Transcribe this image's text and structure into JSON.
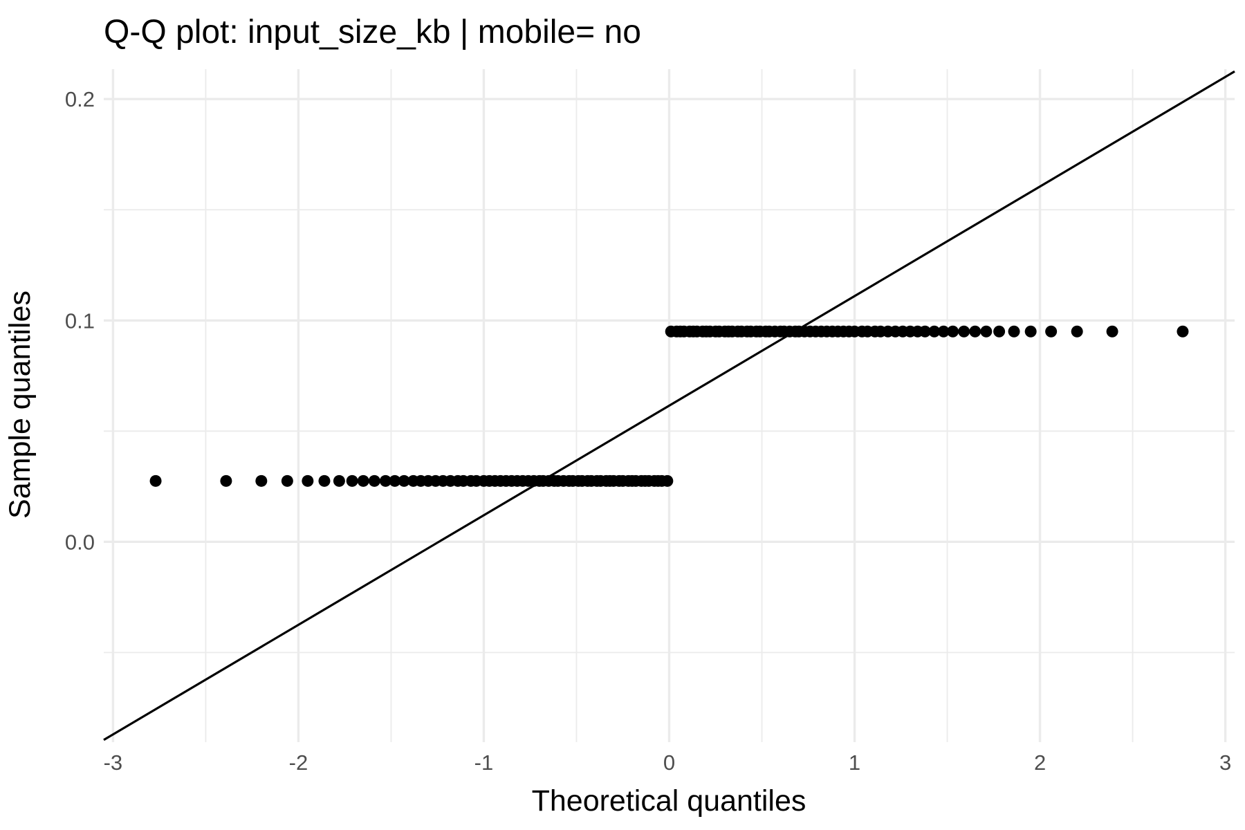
{
  "chart_data": {
    "type": "scatter",
    "title": "Q-Q plot: input_size_kb | mobile= no",
    "xlabel": "Theoretical quantiles",
    "ylabel": "Sample quantiles",
    "xlim": [
      -3.05,
      3.05
    ],
    "ylim": [
      -0.0905,
      0.2135
    ],
    "x_ticks": [
      -3,
      -2,
      -1,
      0,
      1,
      2,
      3
    ],
    "x_tick_labels": [
      "-3",
      "-2",
      "-1",
      "0",
      "1",
      "2",
      "3"
    ],
    "y_ticks": [
      0.0,
      0.1,
      0.2
    ],
    "y_tick_labels": [
      "0.0",
      "0.1",
      "0.2"
    ],
    "grid": true,
    "legend": "none",
    "point_color": "#000000",
    "line_color": "#000000",
    "grid_color": "#ebebeb",
    "reference_line": {
      "intercept": 0.0615,
      "slope": 0.0495
    },
    "series": [
      {
        "x_lower": [
          -2.77,
          -2.39,
          -2.2,
          -2.06,
          -1.95,
          -1.86,
          -1.78,
          -1.71,
          -1.65,
          -1.59,
          -1.53,
          -1.48,
          -1.43,
          -1.38,
          -1.34,
          -1.3,
          -1.26,
          -1.22,
          -1.18,
          -1.14,
          -1.11,
          -1.07,
          -1.04,
          -1.0,
          -0.97,
          -0.94,
          -0.91,
          -0.88,
          -0.85,
          -0.82,
          -0.79,
          -0.76,
          -0.73,
          -0.7,
          -0.68,
          -0.65,
          -0.62,
          -0.6,
          -0.57,
          -0.54,
          -0.52,
          -0.49,
          -0.47,
          -0.44,
          -0.42,
          -0.39,
          -0.37,
          -0.34,
          -0.32,
          -0.3,
          -0.27,
          -0.25,
          -0.22,
          -0.2,
          -0.18,
          -0.15,
          -0.13,
          -0.11,
          -0.08,
          -0.06,
          -0.04,
          -0.01
        ],
        "y_lower": 0.0275,
        "x_upper": [
          0.01,
          0.04,
          0.06,
          0.08,
          0.11,
          0.13,
          0.15,
          0.18,
          0.2,
          0.22,
          0.25,
          0.27,
          0.3,
          0.32,
          0.34,
          0.37,
          0.39,
          0.42,
          0.44,
          0.47,
          0.49,
          0.52,
          0.54,
          0.57,
          0.6,
          0.62,
          0.65,
          0.68,
          0.7,
          0.73,
          0.76,
          0.79,
          0.82,
          0.85,
          0.88,
          0.91,
          0.94,
          0.97,
          1.0,
          1.04,
          1.07,
          1.11,
          1.14,
          1.18,
          1.22,
          1.26,
          1.3,
          1.34,
          1.38,
          1.43,
          1.48,
          1.53,
          1.59,
          1.65,
          1.71,
          1.78,
          1.86,
          1.95,
          2.06,
          2.2,
          2.39,
          2.77
        ],
        "y_upper": 0.095
      }
    ]
  }
}
